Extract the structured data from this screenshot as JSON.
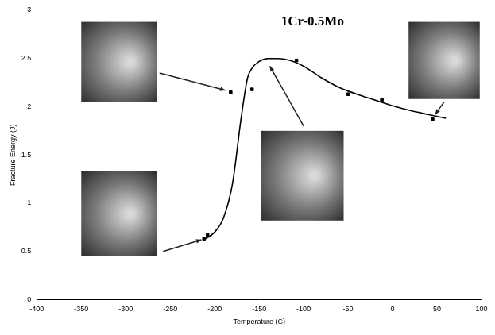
{
  "chart_data": {
    "type": "line",
    "title": "1Cr-0.5Mo",
    "x_label": "Temperature (C)",
    "y_label": "Fracture Energy (J)",
    "xlim": [
      -400,
      100
    ],
    "xticks": [
      -400,
      -350,
      -300,
      -250,
      -200,
      -150,
      -100,
      -50,
      0,
      50,
      100
    ],
    "ylim": [
      0,
      3
    ],
    "yticks": [
      0,
      0.5,
      1,
      1.5,
      2,
      2.5,
      3
    ],
    "grid": false,
    "series": [
      {
        "type": "scatter",
        "marker": "square",
        "color": "#000000",
        "x": [
          -212,
          -208,
          -182,
          -158,
          -108,
          -50,
          -12,
          45
        ],
        "values": [
          0.63,
          0.67,
          2.15,
          2.18,
          2.48,
          2.13,
          2.07,
          1.87
        ]
      },
      {
        "type": "line",
        "line_style": "solid",
        "color": "#000000",
        "x": [
          -212,
          -200,
          -190,
          -180,
          -170,
          -163,
          -158,
          -150,
          -140,
          -130,
          -115,
          -100,
          -80,
          -60,
          -40,
          -20,
          0,
          20,
          40,
          60
        ],
        "values": [
          0.62,
          0.7,
          0.85,
          1.2,
          1.9,
          2.3,
          2.4,
          2.47,
          2.5,
          2.5,
          2.48,
          2.42,
          2.3,
          2.2,
          2.13,
          2.07,
          2.01,
          1.96,
          1.92,
          1.88
        ]
      }
    ]
  }
}
